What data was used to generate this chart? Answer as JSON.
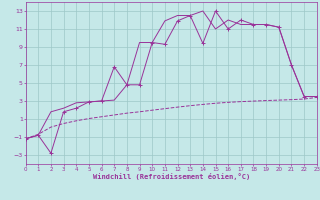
{
  "bg_color": "#c5e8e8",
  "grid_color": "#9ec8c8",
  "line_color": "#993399",
  "xlabel": "Windchill (Refroidissement éolien,°C)",
  "ylim": [
    -4,
    14
  ],
  "xlim": [
    0,
    23
  ],
  "yticks": [
    -3,
    -1,
    1,
    3,
    5,
    7,
    9,
    11,
    13
  ],
  "xticks": [
    0,
    1,
    2,
    3,
    4,
    5,
    6,
    7,
    8,
    9,
    10,
    11,
    12,
    13,
    14,
    15,
    16,
    17,
    18,
    19,
    20,
    21,
    22,
    23
  ],
  "line_dashed_x": [
    0,
    1,
    2,
    3,
    4,
    5,
    6,
    7,
    8,
    9,
    10,
    11,
    12,
    13,
    14,
    15,
    16,
    17,
    18,
    19,
    20,
    21,
    22,
    23
  ],
  "line_dashed_y": [
    -1.2,
    -0.7,
    0.1,
    0.5,
    0.8,
    1.05,
    1.25,
    1.45,
    1.65,
    1.8,
    1.98,
    2.15,
    2.32,
    2.48,
    2.62,
    2.75,
    2.85,
    2.93,
    2.99,
    3.05,
    3.1,
    3.15,
    3.22,
    3.4
  ],
  "line_main_x": [
    0,
    1,
    2,
    3,
    4,
    5,
    6,
    7,
    8,
    9,
    10,
    11,
    12,
    13,
    14,
    15,
    16,
    17,
    18,
    19,
    20,
    21,
    22,
    23
  ],
  "line_main_y": [
    -1.2,
    -0.8,
    -2.8,
    1.8,
    2.2,
    2.9,
    3.0,
    6.8,
    4.8,
    4.8,
    9.5,
    9.3,
    11.9,
    12.5,
    9.4,
    13.0,
    11.0,
    12.0,
    11.5,
    11.5,
    11.2,
    7.0,
    3.5,
    3.5
  ],
  "line_poly_x": [
    0,
    1,
    2,
    3,
    4,
    5,
    6,
    7,
    8,
    9,
    10,
    11,
    12,
    13,
    14,
    15,
    16,
    17,
    18,
    19,
    20,
    21,
    22,
    23
  ],
  "line_poly_y": [
    -1.2,
    -0.8,
    1.8,
    2.2,
    2.8,
    2.9,
    3.0,
    3.1,
    4.8,
    9.5,
    9.5,
    11.9,
    12.5,
    12.5,
    13.0,
    11.0,
    12.0,
    11.5,
    11.5,
    11.5,
    11.2,
    7.0,
    3.5,
    3.5
  ]
}
